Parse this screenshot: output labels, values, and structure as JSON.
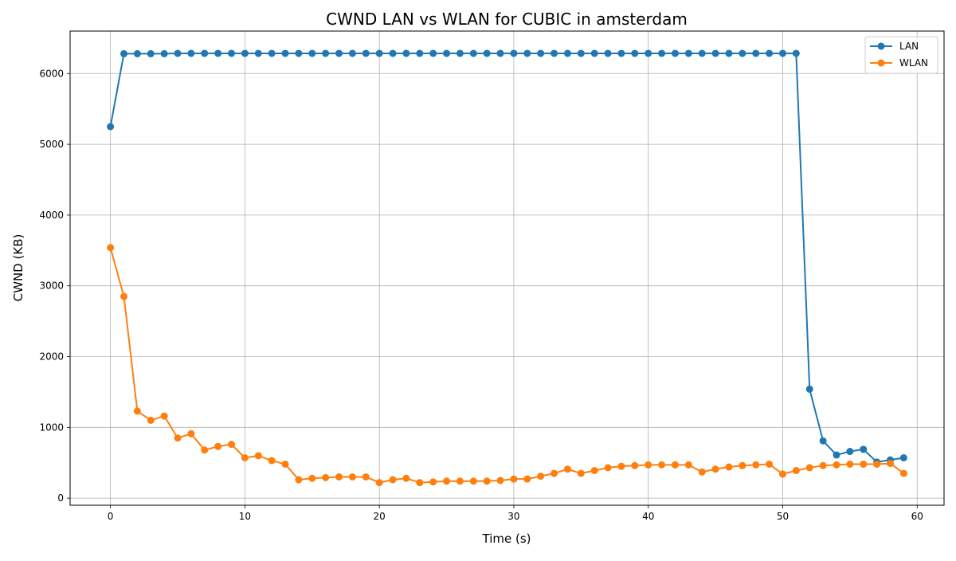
{
  "chart_data": {
    "type": "line",
    "title": "CWND LAN vs WLAN for CUBIC in amsterdam",
    "xlabel": "Time (s)",
    "ylabel": "CWND (KB)",
    "xlim": [
      -3,
      62
    ],
    "ylim": [
      -100,
      6600
    ],
    "xticks": [
      0,
      10,
      20,
      30,
      40,
      50,
      60
    ],
    "yticks": [
      0,
      1000,
      2000,
      3000,
      4000,
      5000,
      6000
    ],
    "grid": true,
    "legend_position": "top-right",
    "x": [
      0,
      1,
      2,
      3,
      4,
      5,
      6,
      7,
      8,
      9,
      10,
      11,
      12,
      13,
      14,
      15,
      16,
      17,
      18,
      19,
      20,
      21,
      22,
      23,
      24,
      25,
      26,
      27,
      28,
      29,
      30,
      31,
      32,
      33,
      34,
      35,
      36,
      37,
      38,
      39,
      40,
      41,
      42,
      43,
      44,
      45,
      46,
      47,
      48,
      49,
      50,
      51,
      52,
      53,
      54,
      55,
      56,
      57,
      58,
      59
    ],
    "series": [
      {
        "name": "LAN",
        "color": "#1f77b4",
        "values": [
          5250,
          6280,
          6280,
          6280,
          6280,
          6285,
          6285,
          6285,
          6285,
          6285,
          6285,
          6285,
          6285,
          6285,
          6285,
          6285,
          6285,
          6285,
          6285,
          6285,
          6285,
          6285,
          6285,
          6285,
          6285,
          6285,
          6285,
          6285,
          6285,
          6285,
          6285,
          6285,
          6285,
          6285,
          6285,
          6285,
          6285,
          6285,
          6285,
          6285,
          6285,
          6285,
          6285,
          6285,
          6285,
          6285,
          6285,
          6285,
          6285,
          6285,
          6285,
          6285,
          1540,
          810,
          610,
          660,
          690,
          510,
          540,
          570
        ]
      },
      {
        "name": "WLAN",
        "color": "#ff7f0e",
        "values": [
          3540,
          2850,
          1230,
          1100,
          1160,
          850,
          910,
          680,
          730,
          760,
          570,
          600,
          530,
          480,
          260,
          280,
          290,
          300,
          300,
          300,
          220,
          260,
          280,
          220,
          230,
          240,
          240,
          240,
          240,
          250,
          270,
          270,
          310,
          350,
          410,
          350,
          390,
          430,
          450,
          460,
          470,
          470,
          470,
          470,
          370,
          410,
          440,
          460,
          470,
          480,
          340,
          390,
          430,
          460,
          470,
          480,
          480,
          480,
          490,
          350
        ]
      }
    ]
  }
}
